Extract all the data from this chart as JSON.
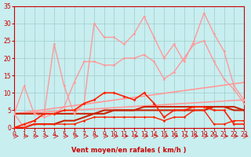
{
  "xlabel": "Vent moyen/en rafales ( km/h )",
  "xlim": [
    0,
    23
  ],
  "ylim": [
    0,
    35
  ],
  "yticks": [
    0,
    5,
    10,
    15,
    20,
    25,
    30,
    35
  ],
  "xticks": [
    0,
    1,
    2,
    3,
    4,
    5,
    6,
    7,
    8,
    9,
    10,
    11,
    12,
    13,
    14,
    15,
    16,
    17,
    18,
    19,
    20,
    21,
    22,
    23
  ],
  "bg_color": "#c8eef0",
  "grid_color": "#a0cccc",
  "series": [
    {
      "x": [
        0,
        23
      ],
      "y": [
        4,
        8
      ],
      "color": "#ff9999",
      "lw": 1.2,
      "marker": null,
      "ms": 0
    },
    {
      "x": [
        0,
        23
      ],
      "y": [
        4,
        13
      ],
      "color": "#ff9999",
      "lw": 1.2,
      "marker": null,
      "ms": 0
    },
    {
      "x": [
        0,
        1,
        2,
        3,
        4,
        5,
        6,
        7,
        8,
        9,
        10,
        11,
        12,
        13,
        14,
        15,
        16,
        17,
        18,
        19,
        20,
        21,
        22,
        23
      ],
      "y": [
        4,
        12,
        4,
        3,
        4,
        6,
        13,
        19,
        19,
        18,
        18,
        20,
        20,
        21,
        19,
        14,
        16,
        20,
        24,
        25,
        19,
        14,
        11,
        7
      ],
      "color": "#ff9999",
      "lw": 1.0,
      "marker": "o",
      "ms": 2.0
    },
    {
      "x": [
        0,
        1,
        2,
        3,
        4,
        5,
        6,
        7,
        8,
        9,
        10,
        11,
        12,
        13,
        14,
        15,
        16,
        17,
        18,
        19,
        20,
        21,
        22,
        23
      ],
      "y": [
        4,
        0,
        2,
        4,
        24,
        12,
        4,
        7,
        30,
        26,
        26,
        24,
        27,
        32,
        26,
        20,
        24,
        19,
        25,
        33,
        27,
        22,
        12,
        8
      ],
      "color": "#ff9999",
      "lw": 1.0,
      "marker": "o",
      "ms": 2.0
    },
    {
      "x": [
        0,
        1,
        2,
        3,
        4,
        5,
        6,
        7,
        8,
        9,
        10,
        11,
        12,
        13,
        14,
        15,
        16,
        17,
        18,
        19,
        20,
        21,
        22,
        23
      ],
      "y": [
        4,
        4,
        4,
        4,
        4,
        4,
        4,
        4,
        4,
        4,
        5,
        5,
        5,
        5,
        5,
        5,
        5,
        5,
        5,
        5,
        6,
        6,
        5,
        5
      ],
      "color": "#cc2200",
      "lw": 1.5,
      "marker": null,
      "ms": 0
    },
    {
      "x": [
        0,
        1,
        2,
        3,
        4,
        5,
        6,
        7,
        8,
        9,
        10,
        11,
        12,
        13,
        14,
        15,
        16,
        17,
        18,
        19,
        20,
        21,
        22,
        23
      ],
      "y": [
        0,
        0,
        1,
        1,
        1,
        2,
        2,
        3,
        4,
        5,
        5,
        5,
        5,
        6,
        6,
        6,
        6,
        6,
        6,
        6,
        6,
        6,
        6,
        5
      ],
      "color": "#cc2200",
      "lw": 1.5,
      "marker": null,
      "ms": 0
    },
    {
      "x": [
        0,
        1,
        2,
        3,
        4,
        5,
        6,
        7,
        8,
        9,
        10,
        11,
        12,
        13,
        14,
        15,
        16,
        17,
        18,
        19,
        20,
        21,
        22,
        23
      ],
      "y": [
        0,
        1,
        2,
        4,
        4,
        5,
        5,
        7,
        8,
        10,
        10,
        9,
        8,
        10,
        7,
        3,
        5,
        5,
        6,
        6,
        5,
        5,
        1,
        1
      ],
      "color": "#ff2200",
      "lw": 1.2,
      "marker": "D",
      "ms": 2.0
    },
    {
      "x": [
        0,
        1,
        2,
        3,
        4,
        5,
        6,
        7,
        8,
        9,
        10,
        11,
        12,
        13,
        14,
        15,
        16,
        17,
        18,
        19,
        20,
        21,
        22,
        23
      ],
      "y": [
        0,
        0,
        1,
        1,
        1,
        1,
        1,
        2,
        3,
        3,
        3,
        3,
        3,
        3,
        3,
        2,
        3,
        3,
        5,
        5,
        1,
        1,
        2,
        2
      ],
      "color": "#ff2200",
      "lw": 1.0,
      "marker": "D",
      "ms": 1.8
    }
  ]
}
